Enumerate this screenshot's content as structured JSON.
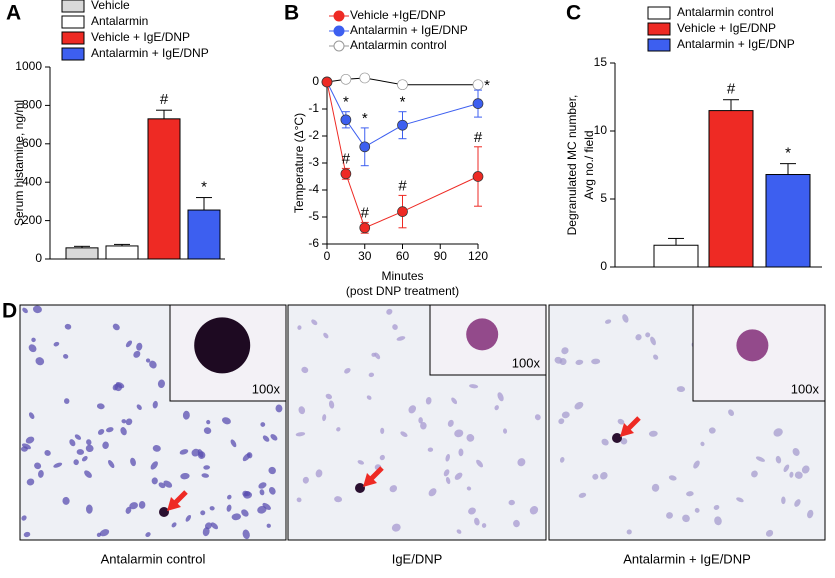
{
  "panel_labels": [
    "A",
    "B",
    "C",
    "D"
  ],
  "chart_data": [
    {
      "type": "bar",
      "ylabel": "Serum histamine, ng/ml",
      "ylim": [
        0,
        1000
      ],
      "yticks": [
        0,
        200,
        400,
        600,
        800,
        1000
      ],
      "series": [
        {
          "name": "Vehicle",
          "color": "#d9d9d9",
          "values": [
            58
          ],
          "errors": [
            8
          ]
        },
        {
          "name": "Antalarmin",
          "color": "#ffffff",
          "values": [
            68
          ],
          "errors": [
            8
          ]
        },
        {
          "name": "Vehicle + IgE/DNP",
          "color": "#ee2a24",
          "values": [
            730
          ],
          "errors": [
            45
          ],
          "annotations": [
            "#"
          ]
        },
        {
          "name": "Antalarmin + IgE/DNP",
          "color": "#3d5ff0",
          "values": [
            255
          ],
          "errors": [
            65
          ],
          "annotations": [
            "*"
          ]
        }
      ]
    },
    {
      "type": "line",
      "ylabel": "Temperature (Δ°C)",
      "xlabel": [
        "Minutes",
        "(post DNP treatment)"
      ],
      "x": [
        0,
        15,
        30,
        60,
        120
      ],
      "xlim": [
        0,
        120
      ],
      "xticks": [
        0,
        30,
        60,
        90,
        120
      ],
      "ylim": [
        -6,
        0
      ],
      "yticks": [
        0,
        -1,
        -2,
        -3,
        -4,
        -5,
        -6
      ],
      "series": [
        {
          "name": "Vehicle +IgE/DNP",
          "color": "#ee2a24",
          "values": [
            0,
            -3.4,
            -5.4,
            -4.8,
            -3.5
          ],
          "errors": [
            0,
            0.2,
            0.2,
            0.6,
            1.1
          ],
          "annotations": [
            null,
            "#",
            "#",
            "#",
            "#"
          ]
        },
        {
          "name": "Antalarmin + IgE/DNP",
          "color": "#3d5ff0",
          "values": [
            0,
            -1.4,
            -2.4,
            -1.6,
            -0.8
          ],
          "errors": [
            0,
            0.3,
            0.7,
            0.5,
            0.5
          ],
          "annotations": [
            null,
            "*",
            "*",
            "*",
            "*"
          ]
        },
        {
          "name": "Antalarmin control",
          "color": "#ffffff",
          "values": [
            0,
            0.1,
            0.15,
            -0.1,
            -0.1
          ],
          "errors": [
            0,
            0,
            0,
            0,
            0
          ]
        }
      ]
    },
    {
      "type": "bar",
      "ylabel": [
        "Degranulated MC number,",
        "Avg no./ field"
      ],
      "ylim": [
        0,
        15
      ],
      "yticks": [
        0,
        5,
        10,
        15
      ],
      "series": [
        {
          "name": "Antalarmin control",
          "color": "#ffffff",
          "values": [
            1.6
          ],
          "errors": [
            0.5
          ]
        },
        {
          "name": "Vehicle + IgE/DNP",
          "color": "#ee2a24",
          "values": [
            11.5
          ],
          "errors": [
            0.8
          ],
          "annotations": [
            "#"
          ]
        },
        {
          "name": "Antalarmin + IgE/DNP",
          "color": "#3d5ff0",
          "values": [
            6.8
          ],
          "errors": [
            0.8
          ],
          "annotations": [
            "*"
          ]
        }
      ]
    }
  ],
  "micrographs": [
    {
      "caption": "Antalarmin control",
      "inset": "100x"
    },
    {
      "caption": "IgE/DNP",
      "inset": "100x"
    },
    {
      "caption": "Antalarmin + IgE/DNP",
      "inset": "100x"
    }
  ]
}
